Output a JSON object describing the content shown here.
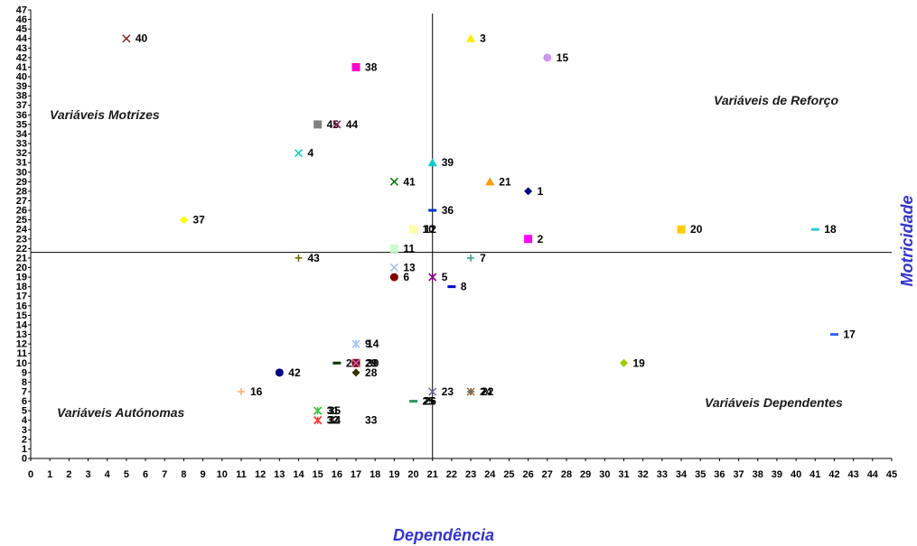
{
  "chart_data": {
    "type": "scatter",
    "xlabel": "Dependência",
    "ylabel": "Motricidade",
    "xlim": [
      0,
      45
    ],
    "ylim": [
      0,
      47
    ],
    "x_ticks": [
      0,
      1,
      2,
      3,
      4,
      5,
      6,
      7,
      8,
      9,
      10,
      11,
      12,
      13,
      14,
      15,
      16,
      17,
      18,
      19,
      20,
      21,
      22,
      23,
      24,
      25,
      26,
      27,
      28,
      29,
      30,
      31,
      32,
      33,
      34,
      35,
      36,
      37,
      38,
      39,
      40,
      41,
      42,
      43,
      44,
      45
    ],
    "y_ticks": [
      0,
      1,
      2,
      3,
      4,
      5,
      6,
      7,
      8,
      9,
      10,
      11,
      12,
      13,
      14,
      15,
      16,
      17,
      18,
      19,
      20,
      21,
      22,
      23,
      24,
      25,
      26,
      27,
      28,
      29,
      30,
      31,
      32,
      33,
      34,
      35,
      36,
      37,
      38,
      39,
      40,
      41,
      42,
      43,
      44,
      45,
      46,
      47
    ],
    "dividers": {
      "x": 21,
      "y": 21.6
    },
    "quadrants": [
      {
        "label": "Variáveis Motrizes",
        "position": "top-left"
      },
      {
        "label": "Variáveis de Reforço",
        "position": "top-right"
      },
      {
        "label": "Variáveis Autónomas",
        "position": "bottom-left"
      },
      {
        "label": "Variáveis Dependentes",
        "position": "bottom-right"
      }
    ],
    "grid": false,
    "legend": "none",
    "points": [
      {
        "label": "40",
        "x": 5,
        "y": 44,
        "marker": "x",
        "color": "#8b1a1a"
      },
      {
        "label": "3",
        "x": 23,
        "y": 44,
        "marker": "triangle",
        "color": "#ffee00"
      },
      {
        "label": "15",
        "x": 27,
        "y": 42,
        "marker": "circle",
        "color": "#cc99ee"
      },
      {
        "label": "38",
        "x": 17,
        "y": 41,
        "marker": "square",
        "color": "#ff00cc"
      },
      {
        "label": "45",
        "x": 15,
        "y": 35,
        "marker": "square",
        "color": "#808080"
      },
      {
        "label": "44",
        "x": 16,
        "y": 35,
        "marker": "x",
        "color": "#800040"
      },
      {
        "label": "4",
        "x": 14,
        "y": 32,
        "marker": "x",
        "color": "#00cccc"
      },
      {
        "label": "39",
        "x": 21,
        "y": 31,
        "marker": "triangle",
        "color": "#00cccc"
      },
      {
        "label": "41",
        "x": 19,
        "y": 29,
        "marker": "x",
        "color": "#007700"
      },
      {
        "label": "21",
        "x": 24,
        "y": 29,
        "marker": "triangle",
        "color": "#ff9900"
      },
      {
        "label": "1",
        "x": 26,
        "y": 28,
        "marker": "diamond",
        "color": "#000080"
      },
      {
        "label": "36",
        "x": 21,
        "y": 26,
        "marker": "dash",
        "color": "#0033cc"
      },
      {
        "label": "37",
        "x": 8,
        "y": 25,
        "marker": "diamond",
        "color": "#ffff00"
      },
      {
        "label": "10",
        "x": 20,
        "y": 24,
        "marker": "square",
        "color": "#ffffaa"
      },
      {
        "label": "12",
        "x": 20,
        "y": 24,
        "marker": "square",
        "color": "#ffffaa"
      },
      {
        "label": "20",
        "x": 34,
        "y": 24,
        "marker": "square",
        "color": "#ffcc00"
      },
      {
        "label": "18",
        "x": 41,
        "y": 24,
        "marker": "dash",
        "color": "#33cccc"
      },
      {
        "label": "2",
        "x": 26,
        "y": 23,
        "marker": "square",
        "color": "#ff00ff"
      },
      {
        "label": "11",
        "x": 19,
        "y": 22,
        "marker": "square",
        "color": "#ccffcc"
      },
      {
        "label": "43",
        "x": 14,
        "y": 21,
        "marker": "plus",
        "color": "#666600"
      },
      {
        "label": "7",
        "x": 23,
        "y": 21,
        "marker": "plus",
        "color": "#339999"
      },
      {
        "label": "13",
        "x": 19,
        "y": 20,
        "marker": "x",
        "color": "#99bbee"
      },
      {
        "label": "6",
        "x": 19,
        "y": 19,
        "marker": "circle",
        "color": "#800000"
      },
      {
        "label": "5",
        "x": 21,
        "y": 19,
        "marker": "asterisk",
        "color": "#800080"
      },
      {
        "label": "8",
        "x": 22,
        "y": 18,
        "marker": "dash",
        "color": "#0000cc"
      },
      {
        "label": "17",
        "x": 42,
        "y": 13,
        "marker": "dash",
        "color": "#3366ff"
      },
      {
        "label": "9",
        "x": 17,
        "y": 12,
        "marker": "asterisk",
        "color": "#ff99cc"
      },
      {
        "label": "14",
        "x": 17,
        "y": 12,
        "marker": "asterisk",
        "color": "#99ccff"
      },
      {
        "label": "27",
        "x": 16,
        "y": 10,
        "marker": "dash",
        "color": "#003300"
      },
      {
        "label": "29",
        "x": 17,
        "y": 10,
        "marker": "square",
        "color": "#800000"
      },
      {
        "label": "30",
        "x": 17,
        "y": 10,
        "marker": "x",
        "color": "#cc66cc"
      },
      {
        "label": "19",
        "x": 31,
        "y": 10,
        "marker": "diamond",
        "color": "#99cc00"
      },
      {
        "label": "42",
        "x": 13,
        "y": 9,
        "marker": "circle",
        "color": "#000080"
      },
      {
        "label": "28",
        "x": 17,
        "y": 9,
        "marker": "diamond",
        "color": "#333300"
      },
      {
        "label": "16",
        "x": 11,
        "y": 7,
        "marker": "plus",
        "color": "#ffaa66"
      },
      {
        "label": "23",
        "x": 21,
        "y": 7,
        "marker": "x",
        "color": "#666699"
      },
      {
        "label": "24",
        "x": 23,
        "y": 7,
        "marker": "plus",
        "color": "#336699"
      },
      {
        "label": "22",
        "x": 23,
        "y": 7,
        "marker": "asterisk",
        "color": "#996633"
      },
      {
        "label": "25",
        "x": 20,
        "y": 6,
        "marker": "dash",
        "color": "#339966"
      },
      {
        "label": "26",
        "x": 20,
        "y": 6,
        "marker": "dash",
        "color": "#339966"
      },
      {
        "label": "31",
        "x": 15,
        "y": 5,
        "marker": "x",
        "color": "#003366"
      },
      {
        "label": "35",
        "x": 15,
        "y": 5,
        "marker": "asterisk",
        "color": "#33cc33"
      },
      {
        "label": "32",
        "x": 15,
        "y": 4,
        "marker": "x",
        "color": "#cc0000"
      },
      {
        "label": "34",
        "x": 15,
        "y": 4,
        "marker": "asterisk",
        "color": "#ff3333"
      },
      {
        "label": "33",
        "x": 17,
        "y": 4,
        "marker": "dash",
        "color": "#ffffff"
      }
    ]
  }
}
